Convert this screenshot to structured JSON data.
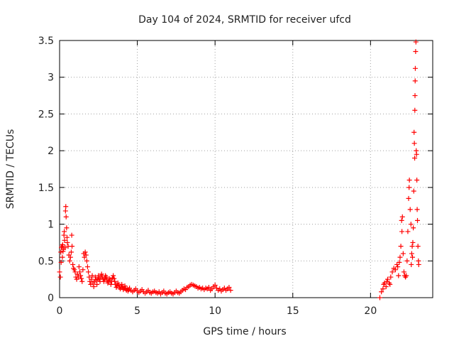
{
  "chart_data": {
    "type": "scatter",
    "title": "Day 104 of 2024, SRMTID for receiver ufcd",
    "xlabel": "GPS time / hours",
    "ylabel": "SRMTID / TECUs",
    "xlim": [
      0,
      24
    ],
    "ylim": [
      0,
      3.5
    ],
    "xticks": [
      0,
      5,
      10,
      15,
      20
    ],
    "xtick_labels": [
      "0",
      "5",
      "10",
      "15",
      "20"
    ],
    "yticks": [
      0,
      0.5,
      1,
      1.5,
      2,
      2.5,
      3,
      3.5
    ],
    "ytick_labels": [
      "0",
      "0.5",
      "1",
      "1.5",
      "2",
      "2.5",
      "3",
      "3.5"
    ],
    "grid": true,
    "marker": "+",
    "series": [
      {
        "name": "SRMTID",
        "color": "#ff0000",
        "points": [
          [
            0.0,
            0.35
          ],
          [
            0.05,
            0.28
          ],
          [
            0.08,
            0.62
          ],
          [
            0.1,
            0.48
          ],
          [
            0.12,
            0.68
          ],
          [
            0.15,
            0.7
          ],
          [
            0.18,
            0.55
          ],
          [
            0.2,
            0.72
          ],
          [
            0.22,
            0.63
          ],
          [
            0.25,
            0.66
          ],
          [
            0.28,
            0.85
          ],
          [
            0.3,
            0.9
          ],
          [
            0.32,
            0.78
          ],
          [
            0.35,
            0.68
          ],
          [
            0.38,
            1.18
          ],
          [
            0.4,
            1.24
          ],
          [
            0.42,
            1.1
          ],
          [
            0.45,
            0.95
          ],
          [
            0.48,
            0.82
          ],
          [
            0.5,
            0.75
          ],
          [
            0.55,
            0.7
          ],
          [
            0.6,
            0.58
          ],
          [
            0.65,
            0.5
          ],
          [
            0.7,
            0.55
          ],
          [
            0.75,
            0.62
          ],
          [
            0.78,
            0.85
          ],
          [
            0.8,
            0.7
          ],
          [
            0.85,
            0.45
          ],
          [
            0.9,
            0.4
          ],
          [
            0.95,
            0.38
          ],
          [
            1.0,
            0.35
          ],
          [
            1.05,
            0.28
          ],
          [
            1.1,
            0.25
          ],
          [
            1.15,
            0.32
          ],
          [
            1.2,
            0.28
          ],
          [
            1.25,
            0.42
          ],
          [
            1.3,
            0.35
          ],
          [
            1.35,
            0.3
          ],
          [
            1.4,
            0.26
          ],
          [
            1.45,
            0.22
          ],
          [
            1.5,
            0.38
          ],
          [
            1.55,
            0.6
          ],
          [
            1.6,
            0.55
          ],
          [
            1.65,
            0.62
          ],
          [
            1.7,
            0.58
          ],
          [
            1.75,
            0.5
          ],
          [
            1.8,
            0.42
          ],
          [
            1.85,
            0.35
          ],
          [
            1.9,
            0.28
          ],
          [
            1.95,
            0.22
          ],
          [
            2.0,
            0.18
          ],
          [
            2.05,
            0.25
          ],
          [
            2.1,
            0.3
          ],
          [
            2.15,
            0.2
          ],
          [
            2.2,
            0.15
          ],
          [
            2.25,
            0.22
          ],
          [
            2.3,
            0.28
          ],
          [
            2.35,
            0.24
          ],
          [
            2.4,
            0.18
          ],
          [
            2.45,
            0.25
          ],
          [
            2.5,
            0.3
          ],
          [
            2.55,
            0.26
          ],
          [
            2.6,
            0.22
          ],
          [
            2.65,
            0.28
          ],
          [
            2.7,
            0.32
          ],
          [
            2.75,
            0.28
          ],
          [
            2.8,
            0.25
          ],
          [
            2.85,
            0.22
          ],
          [
            2.9,
            0.26
          ],
          [
            2.95,
            0.3
          ],
          [
            3.0,
            0.28
          ],
          [
            3.05,
            0.24
          ],
          [
            3.1,
            0.2
          ],
          [
            3.15,
            0.22
          ],
          [
            3.2,
            0.26
          ],
          [
            3.25,
            0.24
          ],
          [
            3.3,
            0.18
          ],
          [
            3.35,
            0.22
          ],
          [
            3.4,
            0.27
          ],
          [
            3.45,
            0.3
          ],
          [
            3.5,
            0.26
          ],
          [
            3.55,
            0.22
          ],
          [
            3.6,
            0.18
          ],
          [
            3.65,
            0.14
          ],
          [
            3.7,
            0.16
          ],
          [
            3.75,
            0.2
          ],
          [
            3.8,
            0.17
          ],
          [
            3.85,
            0.14
          ],
          [
            3.9,
            0.12
          ],
          [
            3.95,
            0.15
          ],
          [
            4.0,
            0.18
          ],
          [
            4.05,
            0.14
          ],
          [
            4.1,
            0.11
          ],
          [
            4.15,
            0.13
          ],
          [
            4.2,
            0.16
          ],
          [
            4.25,
            0.12
          ],
          [
            4.3,
            0.1
          ],
          [
            4.35,
            0.12
          ],
          [
            4.4,
            0.09
          ],
          [
            4.45,
            0.11
          ],
          [
            4.5,
            0.13
          ],
          [
            4.6,
            0.1
          ],
          [
            4.7,
            0.08
          ],
          [
            4.8,
            0.1
          ],
          [
            4.9,
            0.12
          ],
          [
            5.0,
            0.09
          ],
          [
            5.1,
            0.07
          ],
          [
            5.2,
            0.09
          ],
          [
            5.3,
            0.11
          ],
          [
            5.4,
            0.08
          ],
          [
            5.5,
            0.06
          ],
          [
            5.6,
            0.08
          ],
          [
            5.7,
            0.1
          ],
          [
            5.8,
            0.07
          ],
          [
            5.9,
            0.06
          ],
          [
            6.0,
            0.08
          ],
          [
            6.1,
            0.09
          ],
          [
            6.2,
            0.07
          ],
          [
            6.3,
            0.06
          ],
          [
            6.4,
            0.08
          ],
          [
            6.5,
            0.05
          ],
          [
            6.6,
            0.07
          ],
          [
            6.7,
            0.09
          ],
          [
            6.8,
            0.06
          ],
          [
            6.9,
            0.05
          ],
          [
            7.0,
            0.07
          ],
          [
            7.1,
            0.08
          ],
          [
            7.2,
            0.06
          ],
          [
            7.3,
            0.05
          ],
          [
            7.4,
            0.07
          ],
          [
            7.5,
            0.09
          ],
          [
            7.6,
            0.07
          ],
          [
            7.7,
            0.06
          ],
          [
            7.8,
            0.08
          ],
          [
            7.9,
            0.1
          ],
          [
            8.0,
            0.12
          ],
          [
            8.1,
            0.11
          ],
          [
            8.2,
            0.14
          ],
          [
            8.3,
            0.15
          ],
          [
            8.4,
            0.17
          ],
          [
            8.5,
            0.18
          ],
          [
            8.6,
            0.17
          ],
          [
            8.7,
            0.16
          ],
          [
            8.8,
            0.15
          ],
          [
            8.9,
            0.13
          ],
          [
            9.0,
            0.14
          ],
          [
            9.1,
            0.12
          ],
          [
            9.2,
            0.13
          ],
          [
            9.3,
            0.11
          ],
          [
            9.4,
            0.13
          ],
          [
            9.5,
            0.12
          ],
          [
            9.6,
            0.14
          ],
          [
            9.7,
            0.1
          ],
          [
            9.8,
            0.12
          ],
          [
            9.9,
            0.15
          ],
          [
            10.0,
            0.17
          ],
          [
            10.1,
            0.13
          ],
          [
            10.2,
            0.1
          ],
          [
            10.3,
            0.12
          ],
          [
            10.4,
            0.09
          ],
          [
            10.5,
            0.11
          ],
          [
            10.6,
            0.13
          ],
          [
            10.7,
            0.1
          ],
          [
            10.8,
            0.12
          ],
          [
            10.9,
            0.14
          ],
          [
            11.0,
            0.1
          ],
          [
            20.6,
            0.0
          ],
          [
            20.7,
            0.08
          ],
          [
            20.8,
            0.12
          ],
          [
            20.85,
            0.18
          ],
          [
            20.9,
            0.2
          ],
          [
            21.0,
            0.15
          ],
          [
            21.05,
            0.22
          ],
          [
            21.1,
            0.25
          ],
          [
            21.2,
            0.2
          ],
          [
            21.25,
            0.18
          ],
          [
            21.3,
            0.28
          ],
          [
            21.4,
            0.35
          ],
          [
            21.5,
            0.4
          ],
          [
            21.6,
            0.38
          ],
          [
            21.7,
            0.45
          ],
          [
            21.75,
            0.42
          ],
          [
            21.8,
            0.3
          ],
          [
            21.85,
            0.48
          ],
          [
            21.9,
            0.55
          ],
          [
            21.95,
            0.7
          ],
          [
            22.0,
            1.05
          ],
          [
            22.02,
            0.9
          ],
          [
            22.05,
            1.1
          ],
          [
            22.1,
            0.6
          ],
          [
            22.15,
            0.35
          ],
          [
            22.2,
            0.3
          ],
          [
            22.25,
            0.28
          ],
          [
            22.3,
            0.3
          ],
          [
            22.35,
            0.5
          ],
          [
            22.4,
            0.9
          ],
          [
            22.45,
            1.35
          ],
          [
            22.48,
            1.5
          ],
          [
            22.5,
            1.6
          ],
          [
            22.55,
            1.2
          ],
          [
            22.6,
            1.0
          ],
          [
            22.62,
            0.45
          ],
          [
            22.65,
            0.6
          ],
          [
            22.68,
            0.7
          ],
          [
            22.7,
            0.55
          ],
          [
            22.72,
            0.75
          ],
          [
            22.75,
            0.95
          ],
          [
            22.78,
            1.45
          ],
          [
            22.8,
            2.25
          ],
          [
            22.82,
            2.1
          ],
          [
            22.84,
            1.9
          ],
          [
            22.85,
            2.55
          ],
          [
            22.86,
            2.75
          ],
          [
            22.87,
            2.95
          ],
          [
            22.88,
            3.12
          ],
          [
            22.9,
            3.35
          ],
          [
            22.92,
            3.48
          ],
          [
            22.94,
            2.0
          ],
          [
            22.96,
            1.95
          ],
          [
            22.98,
            1.6
          ],
          [
            23.0,
            1.2
          ],
          [
            23.02,
            1.05
          ],
          [
            23.05,
            0.7
          ],
          [
            23.08,
            0.5
          ],
          [
            23.1,
            0.45
          ]
        ]
      }
    ]
  }
}
